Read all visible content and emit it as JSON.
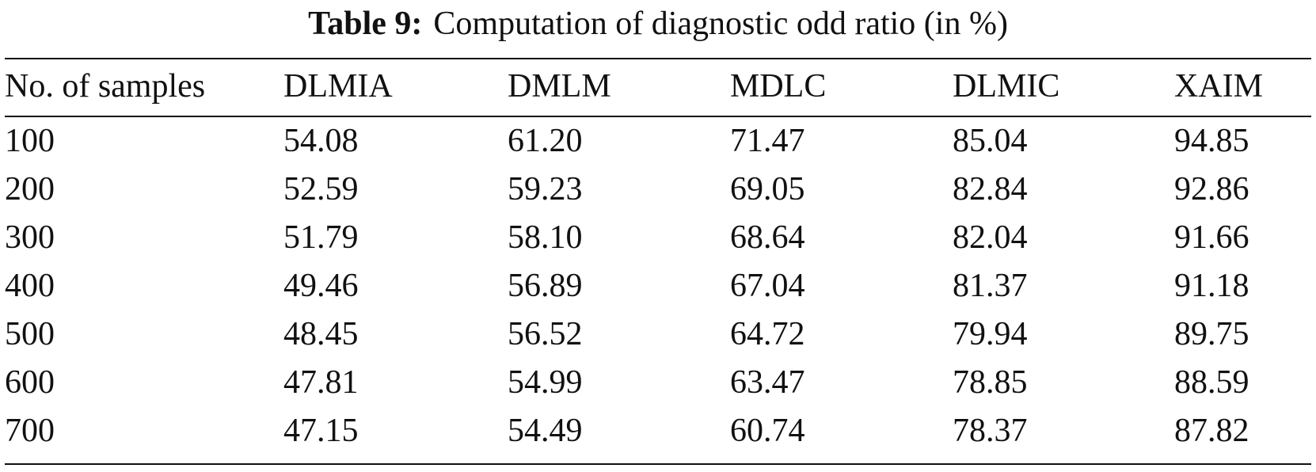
{
  "caption": {
    "label": "Table 9:",
    "text": "Computation of diagnostic odd ratio (in %)"
  },
  "table": {
    "headers": [
      "No. of samples",
      "DLMIA",
      "DMLM",
      "MDLC",
      "DLMIC",
      "XAIM"
    ],
    "rows": [
      [
        "100",
        "54.08",
        "61.20",
        "71.47",
        "85.04",
        "94.85"
      ],
      [
        "200",
        "52.59",
        "59.23",
        "69.05",
        "82.84",
        "92.86"
      ],
      [
        "300",
        "51.79",
        "58.10",
        "68.64",
        "82.04",
        "91.66"
      ],
      [
        "400",
        "49.46",
        "56.89",
        "67.04",
        "81.37",
        "91.18"
      ],
      [
        "500",
        "48.45",
        "56.52",
        "64.72",
        "79.94",
        "89.75"
      ],
      [
        "600",
        "47.81",
        "54.99",
        "63.47",
        "78.85",
        "88.59"
      ],
      [
        "700",
        "47.15",
        "54.49",
        "60.74",
        "78.37",
        "87.82"
      ]
    ]
  }
}
